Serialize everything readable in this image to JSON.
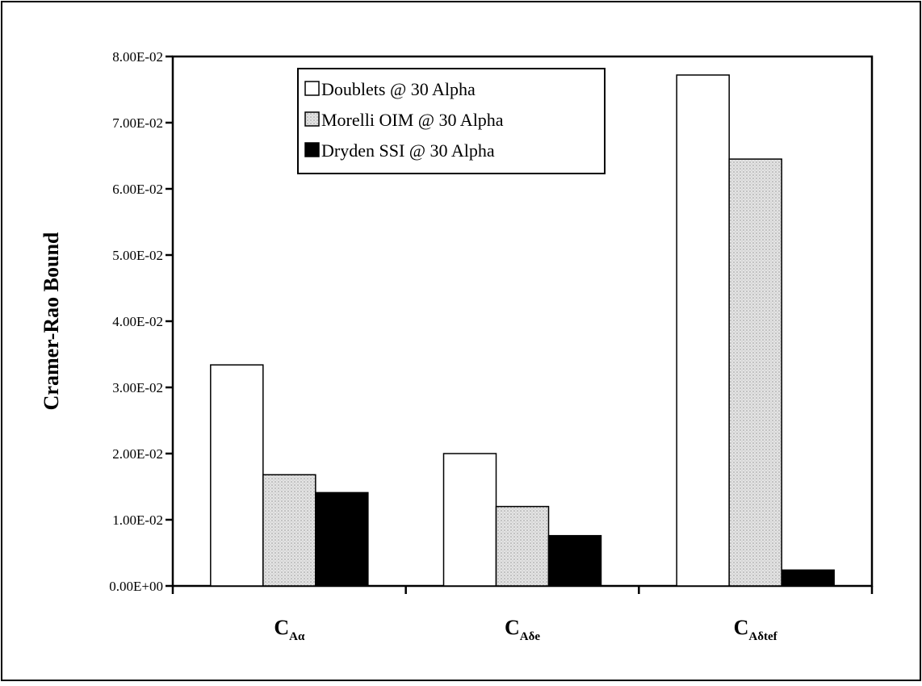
{
  "chart_data": {
    "type": "bar",
    "title": "",
    "ylabel": "Cramer-Rao Bound",
    "xlabel": "",
    "ylim": [
      0,
      0.08
    ],
    "yticks": [
      {
        "value": 0.0,
        "label": "0.00E+00"
      },
      {
        "value": 0.01,
        "label": "1.00E-02"
      },
      {
        "value": 0.02,
        "label": "2.00E-02"
      },
      {
        "value": 0.03,
        "label": "3.00E-02"
      },
      {
        "value": 0.04,
        "label": "4.00E-02"
      },
      {
        "value": 0.05,
        "label": "5.00E-02"
      },
      {
        "value": 0.06,
        "label": "6.00E-02"
      },
      {
        "value": 0.07,
        "label": "7.00E-02"
      },
      {
        "value": 0.08,
        "label": "8.00E-02"
      }
    ],
    "categories": [
      {
        "main": "C",
        "sub": "Aα"
      },
      {
        "main": "C",
        "sub": "Aδe"
      },
      {
        "main": "C",
        "sub": "Aδtef"
      }
    ],
    "series": [
      {
        "name": "Doublets @ 30 Alpha",
        "fill": "#ffffff",
        "values": [
          0.0334,
          0.02,
          0.0772
        ]
      },
      {
        "name": "Morelli OIM @ 30 Alpha",
        "fill": "#e4e4e4",
        "pattern": "dots",
        "values": [
          0.0168,
          0.012,
          0.0645
        ]
      },
      {
        "name": "Dryden SSI @ 30 Alpha",
        "fill": "#000000",
        "values": [
          0.0141,
          0.0076,
          0.0024
        ]
      }
    ],
    "legend_position": "top-center",
    "grid": false
  }
}
